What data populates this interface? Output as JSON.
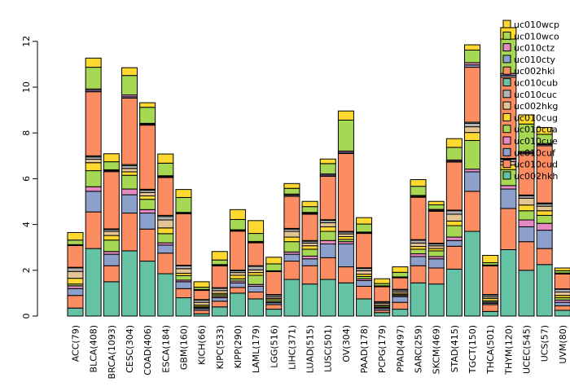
{
  "chart_data": {
    "type": "bar",
    "stacked": true,
    "title": "",
    "xlabel": "",
    "ylabel": "",
    "ylim": [
      0,
      13.5
    ],
    "yticks": [
      0,
      2,
      4,
      6,
      8,
      10,
      12
    ],
    "legend_position": "top-right",
    "categories": [
      "ACC(79)",
      "BLCA(408)",
      "BRCA(1093)",
      "CESC(304)",
      "COAD(406)",
      "ESCA(184)",
      "GBM(160)",
      "KICH(66)",
      "KIPC(533)",
      "KIPP(290)",
      "LAML(179)",
      "LGG(516)",
      "LIHC(371)",
      "LUAD(515)",
      "LUSC(501)",
      "OV(304)",
      "PAAD(178)",
      "PCPG(179)",
      "PPAD(497)",
      "SARC(259)",
      "SKCM(469)",
      "STAD(415)",
      "TGCT(150)",
      "THCA(501)",
      "THYM(120)",
      "UCEC(545)",
      "UCS(57)",
      "UVM(80)"
    ],
    "series": [
      {
        "name": "uc002hkh",
        "color": "#66C2A5",
        "values": [
          0.35,
          2.95,
          1.5,
          2.85,
          2.4,
          1.85,
          0.8,
          0.1,
          0.4,
          1.0,
          0.75,
          0.3,
          1.6,
          1.4,
          1.6,
          1.45,
          0.75,
          0.15,
          0.3,
          1.45,
          1.4,
          2.05,
          3.7,
          0.2,
          2.9,
          2.0,
          2.25,
          0.25
        ]
      },
      {
        "name": "uc010cud",
        "color": "#FC8D62",
        "values": [
          0.55,
          1.6,
          0.7,
          1.65,
          1.4,
          0.9,
          0.4,
          0.15,
          0.25,
          0.25,
          0.3,
          0.2,
          0.8,
          0.8,
          0.95,
          0.7,
          0.55,
          0.1,
          0.3,
          0.75,
          0.7,
          1.0,
          1.75,
          0.3,
          1.8,
          1.25,
          0.7,
          0.2
        ]
      },
      {
        "name": "uc010cuf",
        "color": "#8DA0CB",
        "values": [
          0.3,
          0.9,
          0.5,
          0.8,
          0.7,
          0.35,
          0.3,
          0.08,
          0.15,
          0.2,
          0.25,
          0.08,
          0.3,
          0.3,
          0.6,
          1.0,
          0.25,
          0.08,
          0.25,
          0.4,
          0.4,
          0.25,
          0.85,
          0.06,
          0.85,
          0.65,
          0.8,
          0.15
        ]
      },
      {
        "name": "uc010cue",
        "color": "#E78AC3",
        "values": [
          0.12,
          0.2,
          0.12,
          0.25,
          0.15,
          0.1,
          0.07,
          0.04,
          0.06,
          0.08,
          0.08,
          0.05,
          0.1,
          0.12,
          0.15,
          0.1,
          0.08,
          0.05,
          0.05,
          0.12,
          0.1,
          0.15,
          0.12,
          0.05,
          0.15,
          0.3,
          0.3,
          0.1
        ]
      },
      {
        "name": "uc010cua",
        "color": "#A6D854",
        "values": [
          0.08,
          0.7,
          0.5,
          0.6,
          0.45,
          0.4,
          0.2,
          0.05,
          0.07,
          0.1,
          0.4,
          0.08,
          0.45,
          0.3,
          0.4,
          0.1,
          0.1,
          0.05,
          0.05,
          0.2,
          0.25,
          0.5,
          1.25,
          0.06,
          0.7,
          0.4,
          0.35,
          0.1
        ]
      },
      {
        "name": "uc010cug",
        "color": "#FFD92F",
        "values": [
          0.25,
          0.35,
          0.2,
          0.15,
          0.15,
          0.25,
          0.1,
          0.06,
          0.06,
          0.15,
          0.12,
          0.06,
          0.2,
          0.15,
          0.2,
          0.12,
          0.1,
          0.05,
          0.06,
          0.12,
          0.1,
          0.2,
          0.35,
          0.1,
          0.2,
          0.25,
          0.2,
          0.1
        ]
      },
      {
        "name": "uc002hkg",
        "color": "#E5C494",
        "values": [
          0.3,
          0.15,
          0.18,
          0.15,
          0.15,
          0.35,
          0.2,
          0.12,
          0.12,
          0.12,
          0.12,
          0.07,
          0.25,
          0.12,
          0.18,
          0.12,
          0.15,
          0.08,
          0.08,
          0.15,
          0.12,
          0.3,
          0.25,
          0.07,
          0.15,
          0.3,
          0.2,
          0.15
        ]
      },
      {
        "name": "uc010cuc",
        "color": "#B3B3B3",
        "values": [
          0.15,
          0.1,
          0.08,
          0.12,
          0.1,
          0.15,
          0.12,
          0.1,
          0.1,
          0.08,
          0.15,
          0.08,
          0.1,
          0.08,
          0.1,
          0.08,
          0.1,
          0.05,
          0.06,
          0.12,
          0.08,
          0.15,
          0.15,
          0.08,
          0.1,
          0.1,
          0.1,
          0.12
        ]
      },
      {
        "name": "uc010cub",
        "color": "#66C2A5",
        "values": [
          0.03,
          0.05,
          0.03,
          0.05,
          0.04,
          0.05,
          0.03,
          0.02,
          0.03,
          0.03,
          0.03,
          0.02,
          0.03,
          0.03,
          0.03,
          0.03,
          0.03,
          0.02,
          0.02,
          0.03,
          0.03,
          0.03,
          0.05,
          0.02,
          0.04,
          0.04,
          0.04,
          0.02
        ]
      },
      {
        "name": "uc002hki",
        "color": "#FC8D62",
        "values": [
          0.95,
          2.8,
          2.5,
          2.9,
          2.8,
          1.65,
          2.25,
          0.4,
          0.95,
          1.7,
          1.0,
          1.0,
          1.4,
          1.15,
          1.9,
          3.4,
          1.5,
          0.65,
          0.5,
          1.85,
          1.4,
          2.1,
          2.4,
          1.25,
          3.55,
          1.8,
          2.5,
          0.65
        ]
      },
      {
        "name": "uc010cty",
        "color": "#8DA0CB",
        "values": [
          0.02,
          0.06,
          0.04,
          0.06,
          0.04,
          0.04,
          0.03,
          0.02,
          0.03,
          0.03,
          0.03,
          0.02,
          0.05,
          0.04,
          0.05,
          0.05,
          0.03,
          0.02,
          0.02,
          0.04,
          0.04,
          0.04,
          0.1,
          0.02,
          0.08,
          0.05,
          0.05,
          0.02
        ]
      },
      {
        "name": "uc010ctz",
        "color": "#E78AC3",
        "values": [
          0.02,
          0.06,
          0.04,
          0.08,
          0.04,
          0.04,
          0.03,
          0.02,
          0.03,
          0.03,
          0.03,
          0.02,
          0.05,
          0.04,
          0.05,
          0.06,
          0.03,
          0.02,
          0.02,
          0.04,
          0.04,
          0.05,
          0.1,
          0.02,
          0.08,
          0.05,
          0.05,
          0.02
        ]
      },
      {
        "name": "uc010wco",
        "color": "#A6D854",
        "values": [
          0.2,
          0.95,
          0.35,
          0.85,
          0.7,
          0.55,
          0.65,
          0.1,
          0.2,
          0.45,
          0.35,
          0.3,
          0.25,
          0.25,
          0.45,
          1.35,
          0.35,
          0.1,
          0.2,
          0.4,
          0.2,
          0.55,
          0.55,
          0.1,
          1.5,
          1.2,
          0.4,
          0.1
        ]
      },
      {
        "name": "uc010wcp",
        "color": "#FFD92F",
        "values": [
          0.33,
          0.4,
          0.35,
          0.34,
          0.2,
          0.4,
          0.35,
          0.24,
          0.37,
          0.43,
          0.56,
          0.29,
          0.21,
          0.23,
          0.2,
          0.4,
          0.28,
          0.21,
          0.24,
          0.29,
          0.15,
          0.38,
          0.23,
          0.32,
          0.5,
          0.4,
          0.3,
          0.12
        ]
      }
    ]
  }
}
